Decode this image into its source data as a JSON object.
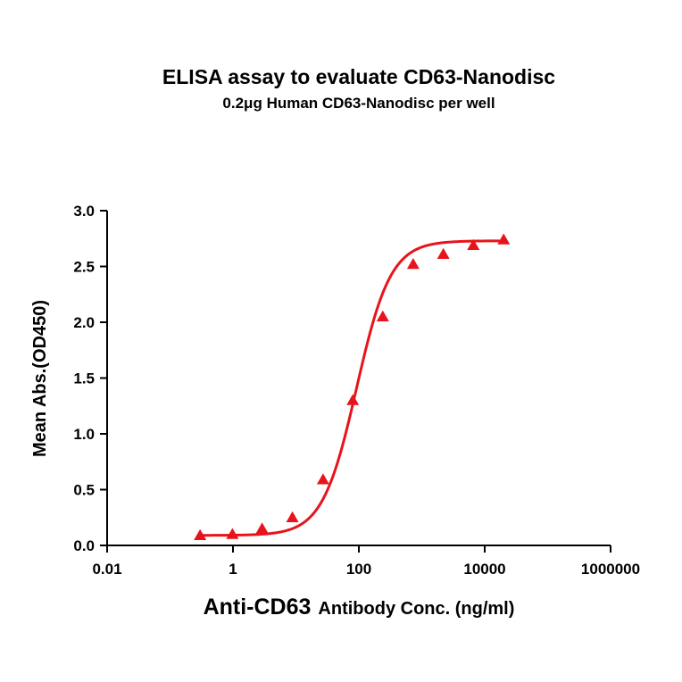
{
  "chart_data": {
    "type": "scatter",
    "title": "ELISA assay to evaluate CD63-Nanodisc",
    "subtitle": "0.2μg Human CD63-Nanodisc per well",
    "xlabel_main": "Anti-CD63",
    "xlabel_rest": "Antibody Conc. (ng/ml)",
    "ylabel": "Mean Abs.(OD450)",
    "x_scale": "log",
    "xlim": [
      0.01,
      1000000
    ],
    "ylim": [
      0,
      3.0
    ],
    "x_ticks": [
      0.01,
      1,
      100,
      10000,
      1000000
    ],
    "x_tick_labels": [
      "0.01",
      "1",
      "100",
      "10000",
      "1000000"
    ],
    "y_ticks": [
      0,
      0.5,
      1.0,
      1.5,
      2.0,
      2.5,
      3.0
    ],
    "y_tick_labels": [
      "0.0",
      "0.5",
      "1.0",
      "1.5",
      "2.0",
      "2.5",
      "3.0"
    ],
    "grid": false,
    "series": [
      {
        "marker": "triangle",
        "color": "#e8141b",
        "x": [
          0.3,
          0.98,
          2.9,
          8.8,
          27,
          80,
          240,
          730,
          2200,
          6600,
          20000
        ],
        "y": [
          0.09,
          0.1,
          0.15,
          0.25,
          0.59,
          1.3,
          2.05,
          2.52,
          2.61,
          2.69,
          2.74
        ]
      }
    ],
    "fit_curve": {
      "model": "4PL",
      "color": "#e8141b",
      "bottom": 0.09,
      "top": 2.73,
      "ec50": 92,
      "hill": 1.6
    }
  }
}
